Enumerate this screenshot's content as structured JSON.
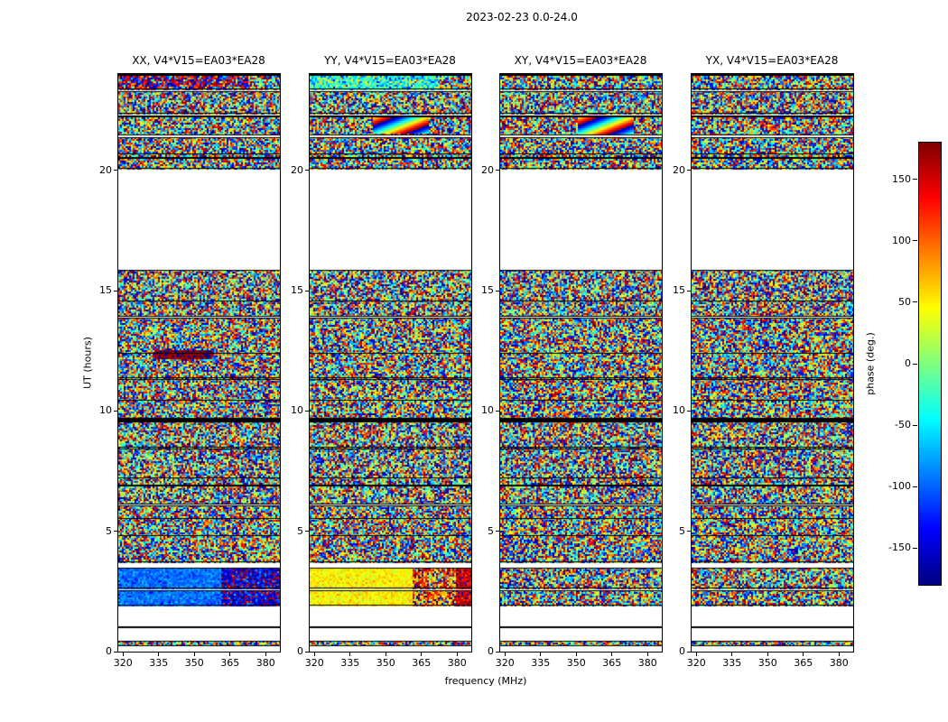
{
  "chart_data": {
    "type": "heatmap",
    "title": "2023-02-23 0.0-24.0",
    "xlabel": "frequency (MHz)",
    "ylabel": "UT (hours)",
    "x_range": [
      318,
      386
    ],
    "y_range": [
      0,
      24
    ],
    "x_ticks": [
      320,
      335,
      350,
      365,
      380
    ],
    "y_ticks": [
      0,
      5,
      10,
      15,
      20
    ],
    "panels": [
      {
        "id": "XX",
        "title": "XX, V4*V15=EA03*EA28"
      },
      {
        "id": "YY",
        "title": "YY, V4*V15=EA03*EA28"
      },
      {
        "id": "XY",
        "title": "XY, V4*V15=EA03*EA28"
      },
      {
        "id": "YX",
        "title": "YX, V4*V15=EA03*EA28"
      }
    ],
    "colorbar": {
      "label": "phase (deg.)",
      "min": -180,
      "max": 180,
      "ticks": [
        150,
        100,
        50,
        0,
        -50,
        -100,
        -150
      ],
      "colormap": "jet"
    },
    "bands": [
      {
        "t0": 0.22,
        "t1": 0.46
      },
      {
        "t0": 1.9,
        "t1": 2.56,
        "cal": true
      },
      {
        "t0": 2.64,
        "t1": 3.5,
        "cal": true
      },
      {
        "t0": 3.72,
        "t1": 6.08
      },
      {
        "t0": 6.13,
        "t1": 8.42
      },
      {
        "t0": 8.47,
        "t1": 9.56
      },
      {
        "t0": 9.68,
        "t1": 11.33
      },
      {
        "t0": 11.38,
        "t1": 13.87
      },
      {
        "t0": 13.92,
        "t1": 15.85
      },
      {
        "t0": 20.08,
        "t1": 21.38
      },
      {
        "t0": 21.46,
        "t1": 22.28
      },
      {
        "t0": 22.36,
        "t1": 23.28
      },
      {
        "t0": 23.36,
        "t1": 24.0
      }
    ],
    "cal_segments": {
      "0": [
        {
          "f0": 318,
          "f1": 361,
          "phase": -95,
          "spread": 16
        },
        {
          "f0": 361,
          "f1": 386,
          "phase": -150,
          "spread": 38
        }
      ],
      "1": [
        {
          "f0": 318,
          "f1": 361,
          "phase": 48,
          "spread": 14
        },
        {
          "f0": 361,
          "f1": 379,
          "phase": 110,
          "spread": 70
        },
        {
          "f0": 379,
          "f1": 386,
          "phase": 152,
          "spread": 22
        }
      ]
    },
    "anomalies": [
      {
        "panel": 0,
        "t0": 12.12,
        "t1": 12.5,
        "f0": 333,
        "f1": 357,
        "mode": "coherent",
        "phase": 177,
        "spread": 8,
        "rate_f": 0,
        "rate_t": 0
      },
      {
        "panel": 0,
        "t0": 23.36,
        "t1": 24.0,
        "f0": 318,
        "f1": 372,
        "mode": "coherent",
        "phase": 175,
        "spread": 70,
        "rate_f": 0,
        "rate_t": 0
      },
      {
        "panel": 1,
        "t0": 23.36,
        "t1": 24.0,
        "f0": 318,
        "f1": 372,
        "mode": "coherent",
        "phase": -35,
        "spread": 45,
        "rate_f": 0,
        "rate_t": 0
      },
      {
        "panel": 1,
        "t0": 21.5,
        "t1": 22.28,
        "f0": 344,
        "f1": 368,
        "mode": "sweep",
        "phase": 0,
        "spread": 0,
        "rate_f": 16,
        "rate_t": 420
      },
      {
        "panel": 2,
        "t0": 21.46,
        "t1": 22.28,
        "f0": 350,
        "f1": 374,
        "mode": "sweep",
        "phase": 0,
        "spread": 0,
        "rate_f": 16,
        "rate_t": 420
      }
    ],
    "flagged_times": [
      {
        "t": 1.02,
        "w": 2
      },
      {
        "t": 4.85,
        "w": 1
      },
      {
        "t": 5.55,
        "w": 1
      },
      {
        "t": 7.25,
        "w": 1
      },
      {
        "t": 9.62,
        "w": 4
      },
      {
        "t": 10.45,
        "w": 1
      },
      {
        "t": 12.42,
        "w": 1
      },
      {
        "t": 14.6,
        "w": 1
      },
      {
        "t": 20.7,
        "w": 1
      }
    ],
    "row_flag_probability": 0.025
  }
}
